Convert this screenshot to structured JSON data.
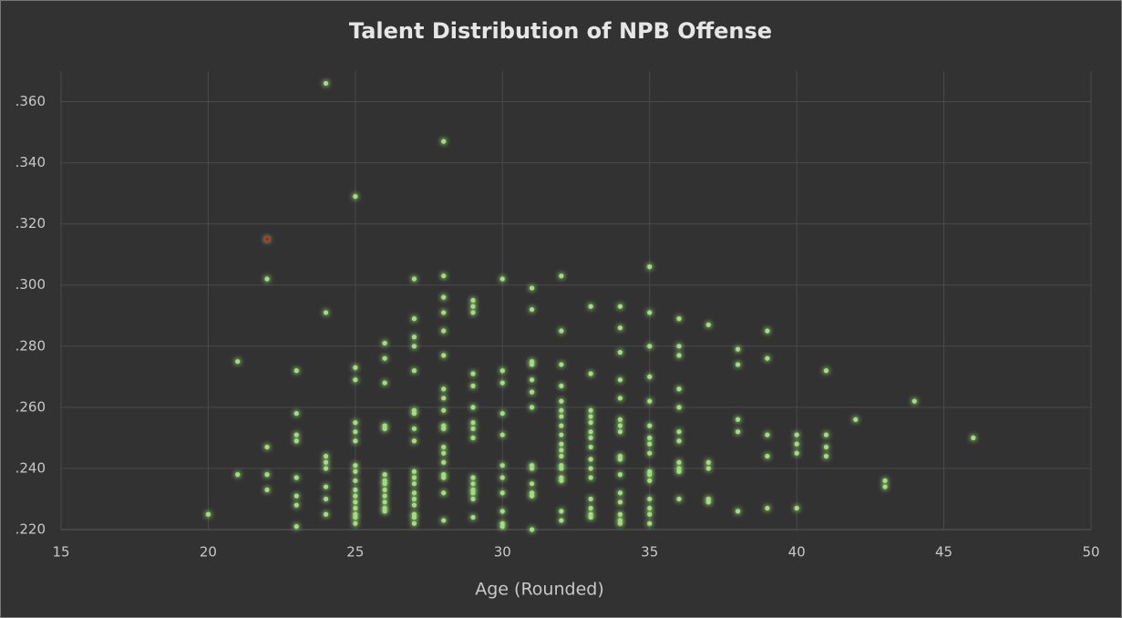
{
  "chart_data": {
    "type": "scatter",
    "title": "Talent Distribution of NPB Offense",
    "x_label": "Age (Rounded)",
    "xlim": [
      15,
      50
    ],
    "xticks": [
      15,
      20,
      25,
      30,
      35,
      40,
      45,
      50
    ],
    "ylim": [
      0.22,
      0.37
    ],
    "yticks": [
      {
        "value": 0.22,
        "label": ".220"
      },
      {
        "value": 0.24,
        "label": ".240"
      },
      {
        "value": 0.26,
        "label": ".260"
      },
      {
        "value": 0.28,
        "label": ".280"
      },
      {
        "value": 0.3,
        "label": ".300"
      },
      {
        "value": 0.32,
        "label": ".320"
      },
      {
        "value": 0.34,
        "label": ".340"
      },
      {
        "value": 0.36,
        "label": ".360"
      }
    ],
    "grid": true,
    "series": [
      {
        "color": "#9ee07a",
        "x": [
          20,
          21,
          21,
          22,
          22,
          22,
          22,
          23,
          23,
          23,
          23,
          23,
          23,
          23,
          23,
          24,
          24,
          24,
          24,
          24,
          24,
          24,
          24,
          25,
          25,
          25,
          25,
          25,
          25,
          25,
          25,
          25,
          25,
          25,
          25,
          25,
          25,
          25,
          25,
          26,
          26,
          26,
          26,
          26,
          26,
          26,
          26,
          26,
          26,
          26,
          26,
          26,
          27,
          27,
          27,
          27,
          27,
          27,
          27,
          27,
          27,
          27,
          27,
          27,
          27,
          27,
          27,
          27,
          27,
          27,
          28,
          28,
          28,
          28,
          28,
          28,
          28,
          28,
          28,
          28,
          28,
          28,
          28,
          28,
          28,
          28,
          28,
          28,
          29,
          29,
          29,
          29,
          29,
          29,
          29,
          29,
          29,
          29,
          29,
          29,
          29,
          29,
          29,
          30,
          30,
          30,
          30,
          30,
          30,
          30,
          30,
          30,
          30,
          30,
          31,
          31,
          31,
          31,
          31,
          31,
          31,
          31,
          31,
          31,
          31,
          31,
          31,
          32,
          32,
          32,
          32,
          32,
          32,
          32,
          32,
          32,
          32,
          32,
          32,
          32,
          32,
          32,
          32,
          32,
          32,
          33,
          33,
          33,
          33,
          33,
          33,
          33,
          33,
          33,
          33,
          33,
          33,
          33,
          33,
          33,
          34,
          34,
          34,
          34,
          34,
          34,
          34,
          34,
          34,
          34,
          34,
          34,
          34,
          34,
          34,
          34,
          35,
          35,
          35,
          35,
          35,
          35,
          35,
          35,
          35,
          35,
          35,
          35,
          35,
          35,
          35,
          35,
          36,
          36,
          36,
          36,
          36,
          36,
          36,
          36,
          36,
          36,
          36,
          37,
          37,
          37,
          37,
          37,
          38,
          38,
          38,
          38,
          38,
          39,
          39,
          39,
          39,
          39,
          40,
          40,
          40,
          40,
          41,
          41,
          41,
          41,
          42,
          43,
          43,
          44,
          46
        ],
        "y": [
          0.225,
          0.275,
          0.238,
          0.302,
          0.247,
          0.238,
          0.233,
          0.272,
          0.258,
          0.251,
          0.249,
          0.237,
          0.231,
          0.228,
          0.221,
          0.366,
          0.291,
          0.244,
          0.242,
          0.24,
          0.234,
          0.23,
          0.225,
          0.329,
          0.273,
          0.269,
          0.255,
          0.252,
          0.249,
          0.241,
          0.239,
          0.236,
          0.233,
          0.231,
          0.229,
          0.227,
          0.225,
          0.224,
          0.222,
          0.281,
          0.276,
          0.268,
          0.254,
          0.253,
          0.238,
          0.236,
          0.235,
          0.233,
          0.231,
          0.229,
          0.227,
          0.226,
          0.302,
          0.289,
          0.283,
          0.28,
          0.272,
          0.259,
          0.258,
          0.253,
          0.249,
          0.239,
          0.237,
          0.235,
          0.232,
          0.23,
          0.228,
          0.225,
          0.224,
          0.222,
          0.347,
          0.303,
          0.296,
          0.291,
          0.285,
          0.277,
          0.266,
          0.263,
          0.259,
          0.254,
          0.253,
          0.247,
          0.245,
          0.242,
          0.238,
          0.237,
          0.232,
          0.223,
          0.295,
          0.293,
          0.291,
          0.271,
          0.267,
          0.26,
          0.255,
          0.253,
          0.25,
          0.237,
          0.235,
          0.233,
          0.232,
          0.23,
          0.224,
          0.302,
          0.272,
          0.268,
          0.258,
          0.251,
          0.241,
          0.237,
          0.232,
          0.226,
          0.222,
          0.221,
          0.299,
          0.292,
          0.275,
          0.274,
          0.269,
          0.265,
          0.26,
          0.241,
          0.24,
          0.235,
          0.232,
          0.231,
          0.22,
          0.303,
          0.285,
          0.274,
          0.267,
          0.262,
          0.259,
          0.257,
          0.254,
          0.251,
          0.248,
          0.246,
          0.244,
          0.241,
          0.24,
          0.237,
          0.236,
          0.226,
          0.223,
          0.293,
          0.271,
          0.259,
          0.257,
          0.255,
          0.252,
          0.25,
          0.247,
          0.243,
          0.24,
          0.237,
          0.23,
          0.227,
          0.225,
          0.224,
          0.293,
          0.286,
          0.278,
          0.269,
          0.263,
          0.256,
          0.254,
          0.252,
          0.244,
          0.243,
          0.238,
          0.232,
          0.229,
          0.225,
          0.223,
          0.222,
          0.306,
          0.291,
          0.28,
          0.27,
          0.262,
          0.254,
          0.25,
          0.248,
          0.245,
          0.239,
          0.238,
          0.236,
          0.23,
          0.227,
          0.225,
          0.222,
          0.289,
          0.28,
          0.277,
          0.266,
          0.26,
          0.252,
          0.249,
          0.242,
          0.24,
          0.239,
          0.23,
          0.287,
          0.242,
          0.24,
          0.23,
          0.229,
          0.279,
          0.274,
          0.256,
          0.252,
          0.226,
          0.285,
          0.276,
          0.251,
          0.244,
          0.227,
          0.251,
          0.248,
          0.245,
          0.227,
          0.272,
          0.251,
          0.247,
          0.244,
          0.256,
          0.236,
          0.234,
          0.262,
          0.25
        ]
      },
      {
        "color": "#e01010",
        "x": [
          22
        ],
        "y": [
          0.315
        ]
      }
    ]
  }
}
